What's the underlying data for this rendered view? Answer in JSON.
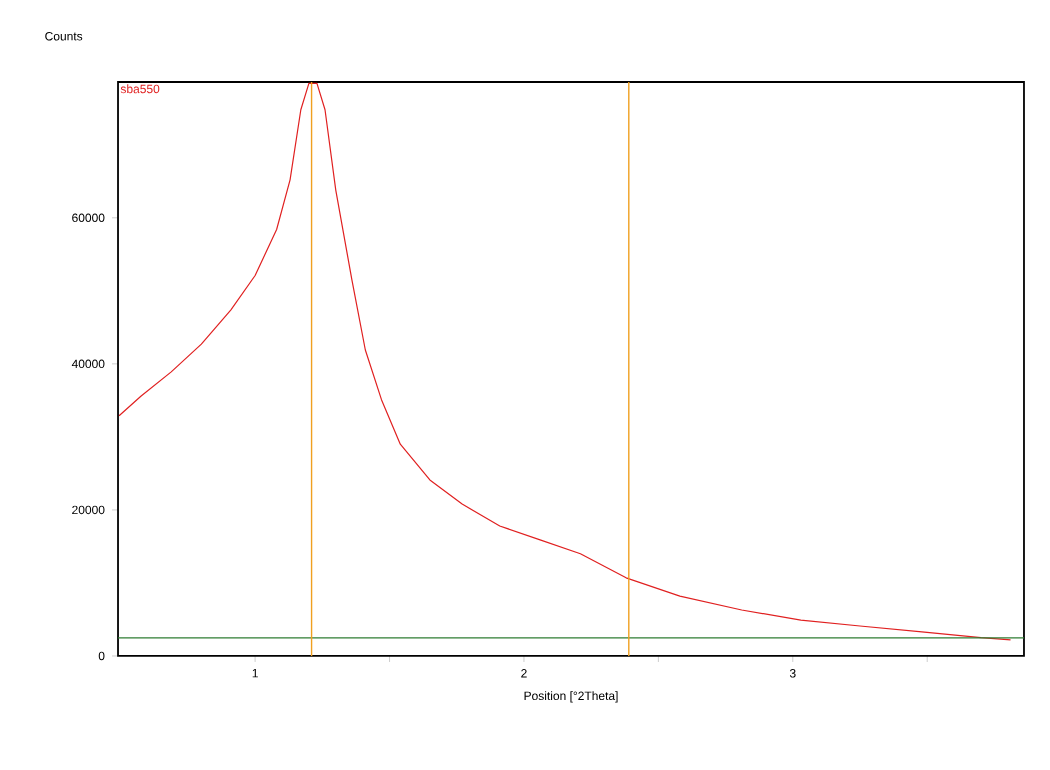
{
  "chart_data": {
    "type": "line",
    "ylabel": "Counts",
    "xlabel": "Position [°2Theta]",
    "xlim": [
      0.49,
      3.86
    ],
    "ylim": [
      0,
      78600
    ],
    "xticks": [
      1,
      {
        "value": 1.5,
        "label": null
      },
      2,
      {
        "value": 2.5,
        "label": null
      },
      3,
      {
        "value": 3.5,
        "label": null
      }
    ],
    "yticks": [
      0,
      20000,
      40000,
      60000
    ],
    "grid": false,
    "legend": false,
    "series": [
      {
        "name": "sba550",
        "color": "#e02020",
        "x": [
          0.494,
          0.576,
          0.688,
          0.8,
          0.91,
          1.0,
          1.08,
          1.13,
          1.17,
          1.2,
          1.23,
          1.26,
          1.3,
          1.36,
          1.41,
          1.47,
          1.54,
          1.65,
          1.77,
          1.91,
          2.06,
          2.21,
          2.38,
          2.58,
          2.81,
          3.03,
          3.25,
          3.48,
          3.7,
          3.81
        ],
        "values": [
          32900,
          35600,
          38900,
          42700,
          47400,
          52100,
          58400,
          65200,
          74800,
          78400,
          78400,
          74800,
          63800,
          51500,
          41900,
          35100,
          29000,
          24100,
          20800,
          17800,
          15900,
          14000,
          10700,
          8200,
          6300,
          4900,
          4100,
          3300,
          2500,
          2200
        ]
      },
      {
        "color": "#2e7d32",
        "x": [
          0.49,
          3.86
        ],
        "values": [
          2470,
          2470
        ]
      }
    ],
    "ref_lines": [
      {
        "axis": "x",
        "value": 1.21,
        "color": "#f0a020"
      },
      {
        "axis": "x",
        "value": 2.39,
        "color": "#f0a020"
      }
    ]
  }
}
